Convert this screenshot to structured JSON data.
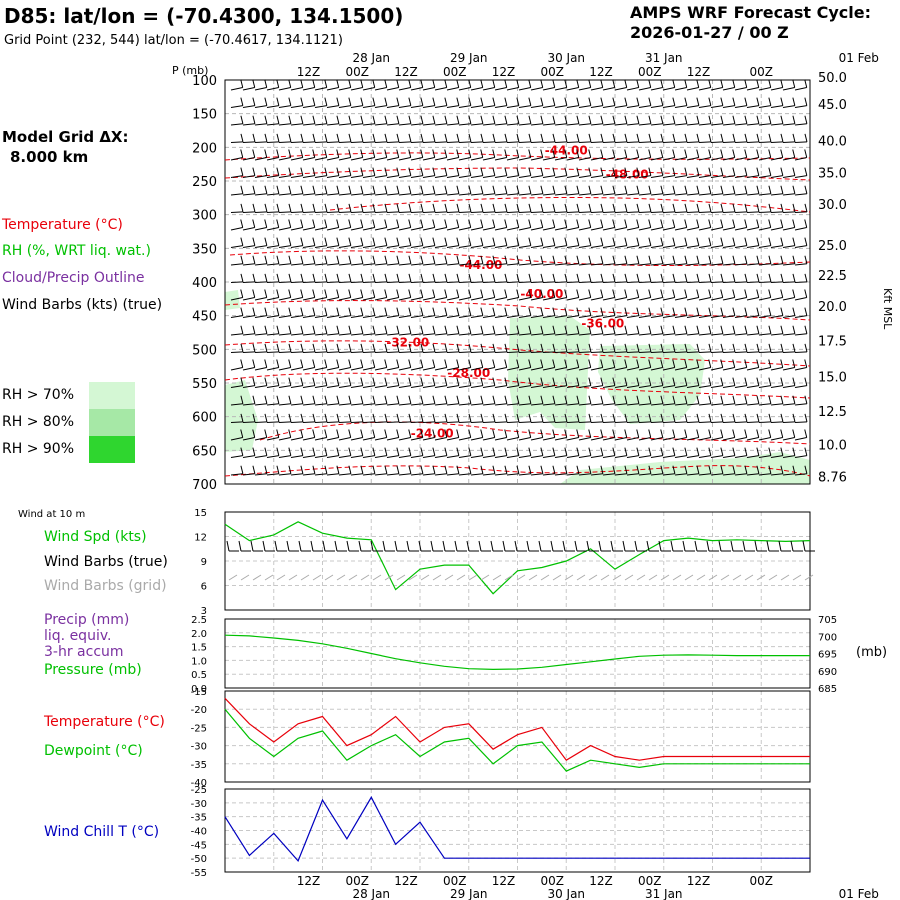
{
  "header": {
    "title": "D85:  lat/lon = (-70.4300, 134.1500)",
    "grid_point": "Grid Point (232, 544) lat/lon = (-70.4617, 134.1121)",
    "cycle_line1": "AMPS WRF Forecast Cycle:",
    "cycle_line2": "2026-01-27 / 00  Z"
  },
  "left_panel": {
    "model_grid_label": "Model Grid ΔX:",
    "model_grid_value": "8.000 km",
    "temperature_label": "Temperature (°C)",
    "rh_label": "RH (%, WRT liq. wat.)",
    "cloud_label": "Cloud/Precip Outline",
    "barbs_label": "Wind Barbs (kts) (true)",
    "rh_key": [
      "RH > 70%",
      "RH > 80%",
      "RH > 90%"
    ],
    "wind10_title": "Wind at 10 m",
    "wind_spd_label": "Wind Spd (kts)",
    "wind_barbs_true_label": "Wind Barbs (true)",
    "wind_barbs_grid_label": "Wind Barbs (grid)",
    "precip_label_1": "Precip (mm)",
    "precip_label_2": "liq. equiv.",
    "precip_label_3": "3-hr accum",
    "pressure_label": "Pressure (mb)",
    "temp_label": "Temperature (°C)",
    "dewpoint_label": "Dewpoint (°C)",
    "windchill_label": "Wind Chill T (°C)"
  },
  "colors": {
    "temperature": "#e8000a",
    "rh_green": "#00c000",
    "cloud_purple": "#7a30a0",
    "windchill_blue": "#0000c0",
    "rh70": "#d4f7d4",
    "rh80": "#a6e8a6",
    "rh90": "#2fd62f",
    "grid_barbs": "#aaaaaa"
  },
  "chart_data": [
    {
      "type": "time-height cross section",
      "panel": "upper-air",
      "ylabel": "P (mb)",
      "ylabel_right": "Kft MSL",
      "y_ticks": [
        "100",
        "150",
        "200",
        "250",
        "300",
        "350",
        "400",
        "450",
        "500",
        "550",
        "600",
        "650",
        "700"
      ],
      "right_ticks": [
        "50.0",
        "45.0",
        "40.0",
        "35.0",
        "30.0",
        "25.0",
        "22.5",
        "20.0",
        "17.5",
        "15.0",
        "12.5",
        "10.0",
        "8.76"
      ],
      "top_time_labels": [
        "12Z",
        "00Z",
        "12Z",
        "00Z",
        "12Z",
        "00Z",
        "12Z",
        "00Z",
        "12Z",
        "00Z"
      ],
      "top_date_labels": [
        "28 Jan",
        "29 Jan",
        "30 Jan",
        "31 Jan",
        "01 Feb"
      ],
      "temperature_contour_labels": [
        {
          "label": "-44.00",
          "t_hours": 84,
          "p_mb": 205
        },
        {
          "label": "-48.00",
          "t_hours": 99,
          "p_mb": 240
        },
        {
          "label": "-44.00",
          "t_hours": 63,
          "p_mb": 375
        },
        {
          "label": "-40.00",
          "t_hours": 78,
          "p_mb": 418
        },
        {
          "label": "-36.00",
          "t_hours": 93,
          "p_mb": 462
        },
        {
          "label": "-32.00",
          "t_hours": 45,
          "p_mb": 490
        },
        {
          "label": "-28.00",
          "t_hours": 60,
          "p_mb": 535
        },
        {
          "label": "-24.00",
          "t_hours": 51,
          "p_mb": 625
        }
      ]
    },
    {
      "type": "line",
      "panel": "wind-10m",
      "y_ticks": [
        "15",
        "12",
        "9",
        "6",
        "3"
      ],
      "ylim": [
        3,
        15
      ],
      "x_hours": [
        0,
        6,
        12,
        18,
        24,
        30,
        36,
        42,
        48,
        54,
        60,
        66,
        72,
        78,
        84,
        90,
        96,
        102,
        108,
        114,
        120,
        126,
        132,
        138,
        144
      ],
      "series": [
        {
          "name": "Wind Spd (kts)",
          "values": [
            13.5,
            11.5,
            12.2,
            13.8,
            12.4,
            11.8,
            11.6,
            5.5,
            8.0,
            8.5,
            8.5,
            5.0,
            7.8,
            8.2,
            9.0,
            10.5,
            8.0,
            9.8,
            11.5,
            11.8,
            11.5,
            11.6,
            11.5,
            11.4,
            11.5
          ]
        }
      ]
    },
    {
      "type": "line",
      "panel": "precip-pressure",
      "y_ticks": [
        "2.5",
        "2.0",
        "1.5",
        "1.0",
        "0.5",
        "0.0"
      ],
      "right_ticks": [
        "705",
        "700",
        "695",
        "690",
        "685"
      ],
      "right_unit": "(mb)",
      "series": [
        {
          "name": "Pressure (mb)",
          "values": [
            700.3,
            700.1,
            699.5,
            698.8,
            697.8,
            696.5,
            695.0,
            693.5,
            692.3,
            691.3,
            690.6,
            690.4,
            690.5,
            691.0,
            691.8,
            692.6,
            693.4,
            694.2,
            694.5,
            694.6,
            694.5,
            694.4,
            694.4,
            694.4,
            694.4
          ]
        }
      ]
    },
    {
      "type": "line",
      "panel": "temperature-dewpoint",
      "y_ticks": [
        "-15",
        "-20",
        "-25",
        "-30",
        "-35",
        "-40"
      ],
      "ylim": [
        -40,
        -15
      ],
      "series": [
        {
          "name": "Temperature (°C)",
          "values": [
            -17,
            -24,
            -29,
            -24,
            -22,
            -30,
            -27,
            -22,
            -29,
            -25,
            -24,
            -31,
            -27,
            -25,
            -34,
            -30,
            -33,
            -34,
            -33,
            -33,
            -33,
            -33,
            -33,
            -33,
            -33
          ]
        },
        {
          "name": "Dewpoint (°C)",
          "values": [
            -20,
            -28,
            -33,
            -28,
            -26,
            -34,
            -30,
            -27,
            -33,
            -29,
            -28,
            -35,
            -30,
            -29,
            -37,
            -34,
            -35,
            -36,
            -35,
            -35,
            -35,
            -35,
            -35,
            -35,
            -35
          ]
        }
      ]
    },
    {
      "type": "line",
      "panel": "windchill",
      "y_ticks": [
        "-25",
        "-30",
        "-35",
        "-40",
        "-45",
        "-50",
        "-55"
      ],
      "ylim": [
        -55,
        -25
      ],
      "bottom_time_labels": [
        "12Z",
        "00Z",
        "12Z",
        "00Z",
        "12Z",
        "00Z",
        "12Z",
        "00Z",
        "12Z",
        "00Z"
      ],
      "bottom_date_labels": [
        "28 Jan",
        "29 Jan",
        "30 Jan",
        "31 Jan",
        "01 Feb"
      ],
      "series": [
        {
          "name": "Wind Chill T (°C)",
          "values": [
            -35,
            -49,
            -41,
            -51,
            -29,
            -43,
            -28,
            -45,
            -37,
            -50,
            -50,
            -50,
            -50,
            -50,
            -50,
            -50,
            -50,
            -50,
            -50,
            -50,
            -50,
            -50,
            -50,
            -50,
            -50
          ]
        }
      ]
    }
  ]
}
